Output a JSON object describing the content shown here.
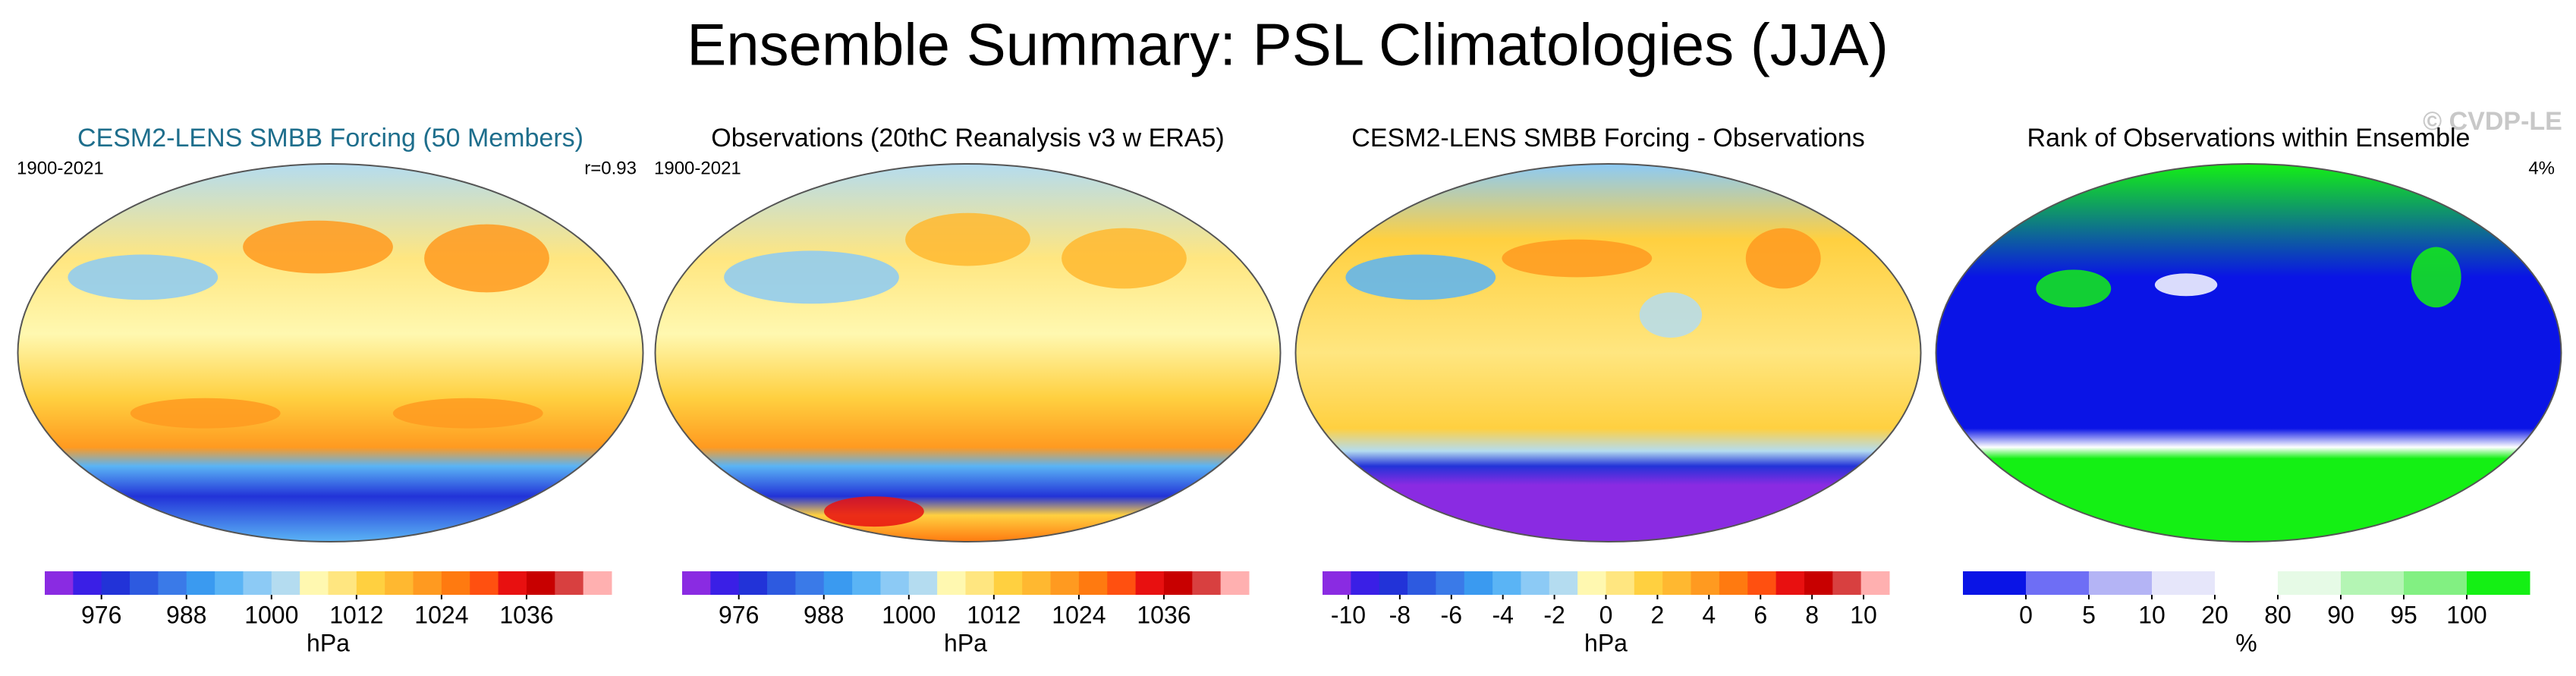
{
  "header": {
    "title": "Ensemble Summary: PSL Climatologies (JJA)",
    "watermark": "© CVDP-LE"
  },
  "panels": [
    {
      "title": "CESM2-LENS SMBB Forcing (50 Members)",
      "title_color": "#1e6e8c",
      "left_note": "1900-2021",
      "right_note": "r=0.93",
      "colorbar": {
        "type": "linear",
        "label": "hPa",
        "lim": [
          968,
          1048
        ],
        "ticks": [
          976,
          988,
          1000,
          1012,
          1024,
          1036
        ],
        "colors": [
          "#8a2be2",
          "#3a1fe6",
          "#2233d8",
          "#2d5ae0",
          "#3a7ae8",
          "#3a9af0",
          "#5ab4f5",
          "#8ccaf5",
          "#b4dcf0",
          "#fff8b0",
          "#ffe680",
          "#ffd040",
          "#ffb830",
          "#ff9a20",
          "#ff7a10",
          "#ff5010",
          "#e81010",
          "#c80000",
          "#d84040",
          "#ffb0b0"
        ]
      }
    },
    {
      "title": "Observations (20thC Reanalysis v3 w ERA5)",
      "title_color": "#000000",
      "left_note": "1900-2021",
      "colorbar": {
        "type": "linear",
        "label": "hPa",
        "lim": [
          968,
          1048
        ],
        "ticks": [
          976,
          988,
          1000,
          1012,
          1024,
          1036
        ],
        "colors": [
          "#8a2be2",
          "#3a1fe6",
          "#2233d8",
          "#2d5ae0",
          "#3a7ae8",
          "#3a9af0",
          "#5ab4f5",
          "#8ccaf5",
          "#b4dcf0",
          "#fff8b0",
          "#ffe680",
          "#ffd040",
          "#ffb830",
          "#ff9a20",
          "#ff7a10",
          "#ff5010",
          "#e81010",
          "#c80000",
          "#d84040",
          "#ffb0b0"
        ]
      }
    },
    {
      "title": "CESM2-LENS SMBB Forcing - Observations",
      "title_color": "#000000",
      "colorbar": {
        "type": "linear",
        "label": "hPa",
        "lim": [
          -11,
          11
        ],
        "ticks": [
          -10,
          -8,
          -6,
          -4,
          -2,
          0,
          2,
          4,
          6,
          8,
          10
        ],
        "colors": [
          "#8a2be2",
          "#3a1fe6",
          "#2233d8",
          "#2d5ae0",
          "#3a7ae8",
          "#3a9af0",
          "#5ab4f5",
          "#8ccaf5",
          "#b4dcf0",
          "#fff8b0",
          "#ffe680",
          "#ffd040",
          "#ffb830",
          "#ff9a20",
          "#ff7a10",
          "#ff5010",
          "#e81010",
          "#c80000",
          "#d84040",
          "#ffb0b0"
        ]
      }
    },
    {
      "title": "Rank of Observations within Ensemble",
      "title_color": "#000000",
      "right_note": "4%",
      "colorbar": {
        "type": "categorical",
        "label": "%",
        "ticks": [
          0,
          5,
          10,
          20,
          80,
          90,
          95,
          100
        ],
        "colors": [
          "#0a14e6",
          "#6e6ef5",
          "#b4b4f5",
          "#e6e6fa",
          "#ffffff",
          "#e6fae6",
          "#b4f5b4",
          "#82f082",
          "#14f014"
        ]
      }
    }
  ]
}
